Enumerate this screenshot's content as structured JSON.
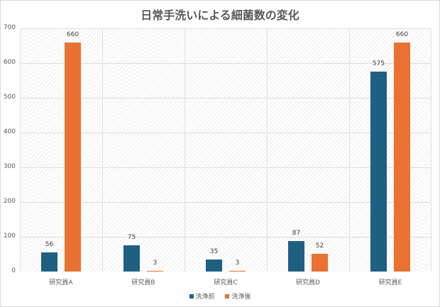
{
  "chart_data": {
    "type": "bar",
    "title": "日常手洗いによる細菌数の変化",
    "xlabel": "",
    "ylabel": "",
    "ylim": [
      0,
      700
    ],
    "yticks": [
      0,
      100,
      200,
      300,
      400,
      500,
      600,
      700
    ],
    "grid": true,
    "legend_position": "bottom",
    "categories": [
      "研究員A",
      "研究員B",
      "研究員C",
      "研究員D",
      "研究員E"
    ],
    "series": [
      {
        "name": "洗浄前",
        "color": "#1f5f82",
        "values": [
          56,
          75,
          35,
          87,
          575
        ]
      },
      {
        "name": "洗浄後",
        "color": "#e97132",
        "values": [
          660,
          3,
          3,
          52,
          660
        ]
      }
    ]
  }
}
